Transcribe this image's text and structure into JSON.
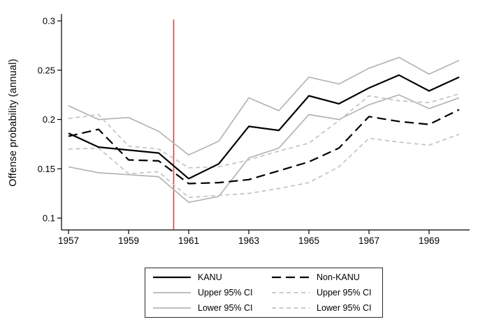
{
  "chart_data": {
    "type": "line",
    "title": "",
    "xlabel": "",
    "ylabel": "Offense probability (annual)",
    "x": [
      1957,
      1958,
      1959,
      1960,
      1961,
      1962,
      1963,
      1964,
      1965,
      1966,
      1967,
      1968,
      1969,
      1970
    ],
    "x_ticks": [
      1957,
      1959,
      1961,
      1963,
      1965,
      1967,
      1969
    ],
    "y_ticks": [
      0.1,
      0.15,
      0.2,
      0.25,
      0.3
    ],
    "xlim": [
      1956.75,
      1970.35
    ],
    "ylim": [
      0.088,
      0.307
    ],
    "grid": "off",
    "vline": {
      "x": 1960.5,
      "color": "#cc4444",
      "meaning": "event-line"
    },
    "series": [
      {
        "name": "KANU",
        "style": "solid",
        "dash": "",
        "color": "#000000",
        "width": 2.2,
        "values": [
          0.186,
          0.172,
          0.169,
          0.166,
          0.14,
          0.155,
          0.193,
          0.189,
          0.224,
          0.216,
          0.232,
          0.245,
          0.229,
          0.243
        ]
      },
      {
        "name": "Non-KANU",
        "style": "dashed",
        "dash": "13 7",
        "color": "#000000",
        "width": 2.2,
        "values": [
          0.183,
          0.19,
          0.159,
          0.158,
          0.135,
          0.136,
          0.139,
          0.148,
          0.157,
          0.171,
          0.203,
          0.198,
          0.195,
          0.21
        ]
      },
      {
        "name": "Upper 95% CI",
        "group": "KANU",
        "style": "solid",
        "dash": "",
        "color": "#b4b4b4",
        "width": 1.7,
        "values": [
          0.214,
          0.2,
          0.202,
          0.188,
          0.164,
          0.178,
          0.222,
          0.209,
          0.243,
          0.236,
          0.252,
          0.263,
          0.246,
          0.26
        ]
      },
      {
        "name": "Lower 95% CI",
        "group": "KANU",
        "style": "solid",
        "dash": "",
        "color": "#b4b4b4",
        "width": 1.7,
        "values": [
          0.152,
          0.146,
          0.144,
          0.142,
          0.116,
          0.122,
          0.161,
          0.171,
          0.205,
          0.2,
          0.215,
          0.225,
          0.211,
          0.222
        ]
      },
      {
        "name": "Upper 95% CI",
        "group": "Non-KANU",
        "style": "dashed",
        "dash": "6 4.5",
        "color": "#c3c3c3",
        "width": 1.7,
        "values": [
          0.201,
          0.205,
          0.173,
          0.17,
          0.151,
          0.152,
          0.159,
          0.168,
          0.176,
          0.199,
          0.224,
          0.219,
          0.217,
          0.226
        ]
      },
      {
        "name": "Lower 95% CI",
        "group": "Non-KANU",
        "style": "dashed",
        "dash": "6 4.5",
        "color": "#c3c3c3",
        "width": 1.7,
        "values": [
          0.17,
          0.171,
          0.145,
          0.147,
          0.121,
          0.123,
          0.125,
          0.13,
          0.136,
          0.152,
          0.181,
          0.177,
          0.174,
          0.185
        ]
      }
    ],
    "legend": {
      "position": "bottom-center",
      "border": true,
      "columns": [
        [
          "KANU",
          "Upper 95% CI",
          "Lower 95% CI"
        ],
        [
          "Non-KANU",
          "Upper 95% CI",
          "Lower 95% CI"
        ]
      ]
    }
  }
}
